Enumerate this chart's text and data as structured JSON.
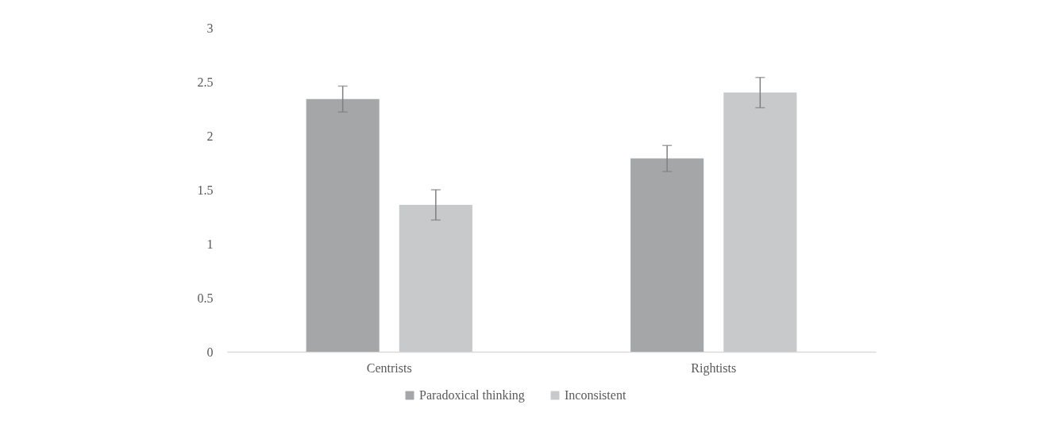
{
  "chart_data": {
    "type": "bar",
    "categories": [
      "Centrists",
      "Rightists"
    ],
    "series": [
      {
        "name": "Paradoxical thinking",
        "color": "#a5a6a8",
        "values": [
          2.34,
          1.79
        ],
        "errors": [
          0.12,
          0.12
        ]
      },
      {
        "name": "Inconsistent",
        "color": "#c8c9cb",
        "values": [
          1.36,
          2.4
        ],
        "errors": [
          0.14,
          0.14
        ]
      }
    ],
    "ylim": [
      0,
      3
    ],
    "yticks": [
      0,
      0.5,
      1,
      1.5,
      2,
      2.5,
      3
    ],
    "grid": false,
    "legend": "bottom"
  }
}
